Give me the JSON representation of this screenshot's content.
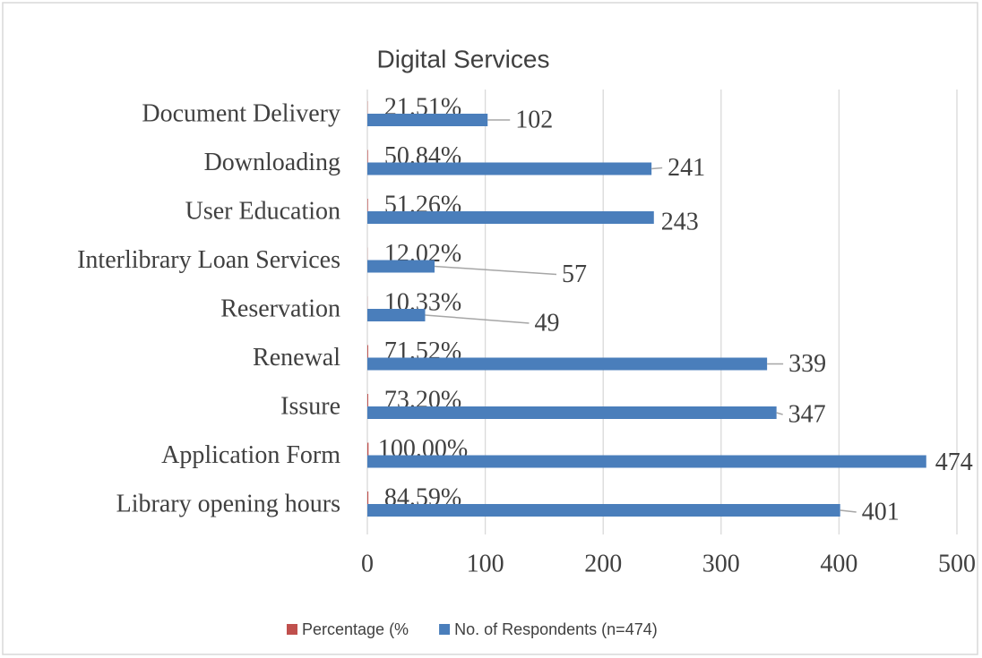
{
  "chart_data": {
    "type": "bar",
    "orientation": "horizontal",
    "title": "Digital Services",
    "categories": [
      "Document Delivery",
      "Downloading",
      "User Education",
      "Interlibrary Loan Services",
      "Reservation",
      "Renewal",
      "Issure",
      "Application Form",
      "Library opening hours"
    ],
    "series": [
      {
        "name": "Percentage (%",
        "color": "#c0504d",
        "values": [
          0.2151,
          0.5084,
          0.5126,
          0.1202,
          0.1033,
          0.7152,
          0.732,
          1.0,
          0.8459
        ],
        "value_labels": [
          "21.51%",
          "50.84%",
          "51.26%",
          "12.02%",
          "10.33%",
          "71.52%",
          "73.20%",
          "100.00%",
          "84.59%"
        ]
      },
      {
        "name": "No. of Respondents (n=474)",
        "color": "#4a7ebb",
        "values": [
          102,
          241,
          243,
          57,
          49,
          339,
          347,
          474,
          401
        ]
      }
    ],
    "xlim": [
      0,
      500
    ],
    "xticks": [
      0,
      100,
      200,
      300,
      400,
      500
    ],
    "grid": true,
    "legend": "bottom"
  }
}
